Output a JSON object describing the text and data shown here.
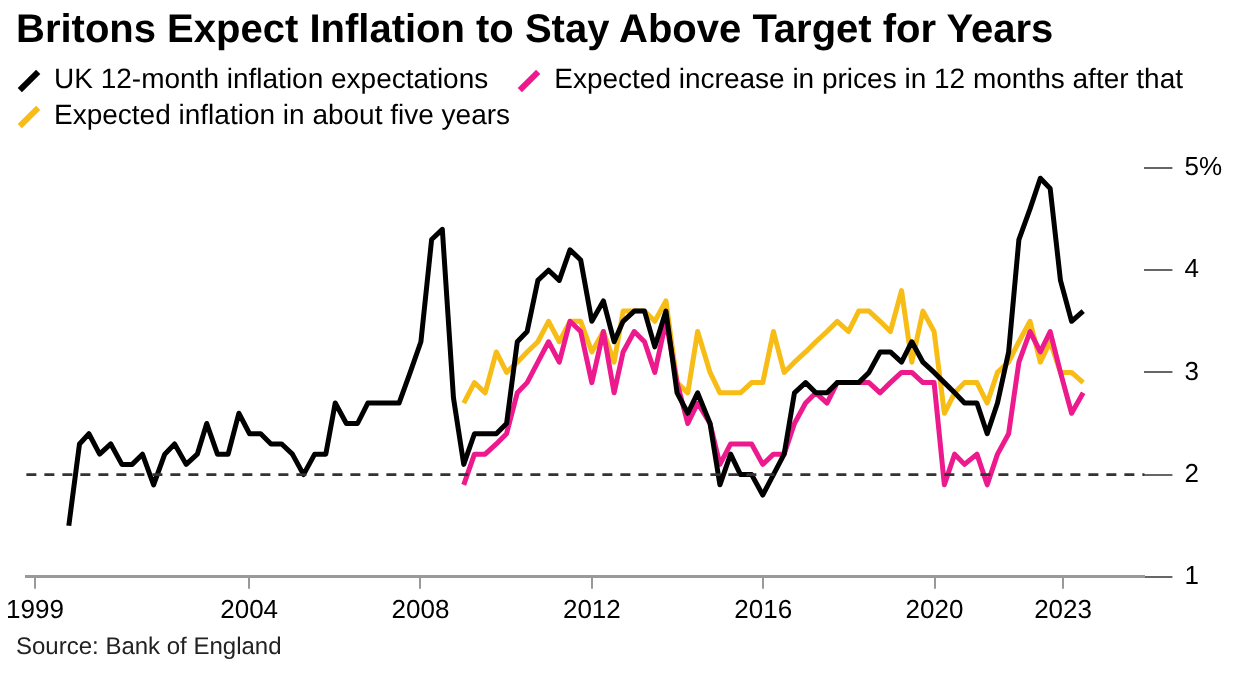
{
  "chart_data": {
    "type": "line",
    "title": "Britons Expect Inflation to Stay Above Target for Years",
    "annotations": [
      "Source: Bank of England"
    ],
    "xlim": [
      1998.8,
      2024.9
    ],
    "xticks": [
      1999,
      2004,
      2008,
      2012,
      2016,
      2020,
      2023
    ],
    "ylim": [
      1,
      5
    ],
    "yticks": [
      1,
      2,
      3,
      4,
      {
        "value": 5,
        "label": "5%"
      }
    ],
    "grid": false,
    "legend": "top",
    "marker": "none",
    "ref_lines": [
      {
        "axis": "y",
        "value": 2,
        "line_style": "dashed",
        "color": "#333333"
      }
    ],
    "series": [
      {
        "name": "UK 12-month inflation expectations",
        "color": "#000000",
        "x": [
          1999.79,
          2000.04,
          2000.26,
          2000.51,
          2000.77,
          2001.03,
          2001.27,
          2001.51,
          2001.77,
          2002.03,
          2002.26,
          2002.53,
          2002.79,
          2003.01,
          2003.26,
          2003.51,
          2003.76,
          2004.01,
          2004.27,
          2004.51,
          2004.76,
          2005.01,
          2005.27,
          2005.53,
          2005.79,
          2006.01,
          2006.27,
          2006.53,
          2006.77,
          2007.01,
          2007.26,
          2007.5,
          2007.76,
          2008.01,
          2008.26,
          2008.51,
          2008.77,
          2009.01,
          2009.26,
          2009.51,
          2009.77,
          2010.01,
          2010.26,
          2010.49,
          2010.74,
          2010.99,
          2011.24,
          2011.49,
          2011.74,
          2012.0,
          2012.27,
          2012.52,
          2012.73,
          2012.99,
          2013.23,
          2013.47,
          2013.73,
          2013.99,
          2014.24,
          2014.47,
          2014.76,
          2014.99,
          2015.24,
          2015.47,
          2015.73,
          2015.99,
          2016.24,
          2016.49,
          2016.73,
          2016.99,
          2017.23,
          2017.49,
          2017.73,
          2017.99,
          2018.23,
          2018.47,
          2018.73,
          2018.97,
          2019.23,
          2019.47,
          2019.73,
          2019.99,
          2020.23,
          2020.47,
          2020.7,
          2020.99,
          2021.23,
          2021.47,
          2021.73,
          2021.97,
          2022.23,
          2022.47,
          2022.7,
          2022.94,
          2023.2,
          2023.47
        ],
        "values": [
          1.5,
          2.3,
          2.4,
          2.2,
          2.3,
          2.1,
          2.1,
          2.2,
          1.9,
          2.2,
          2.3,
          2.1,
          2.2,
          2.5,
          2.2,
          2.2,
          2.6,
          2.4,
          2.4,
          2.3,
          2.3,
          2.2,
          2.0,
          2.2,
          2.2,
          2.7,
          2.5,
          2.5,
          2.7,
          2.7,
          2.7,
          2.7,
          3.0,
          3.3,
          4.3,
          4.4,
          2.75,
          2.1,
          2.4,
          2.4,
          2.4,
          2.5,
          3.3,
          3.4,
          3.9,
          4.0,
          3.9,
          4.2,
          4.1,
          3.5,
          3.7,
          3.3,
          3.5,
          3.6,
          3.6,
          3.25,
          3.6,
          2.8,
          2.6,
          2.8,
          2.5,
          1.9,
          2.2,
          2.0,
          2.0,
          1.8,
          2.0,
          2.2,
          2.8,
          2.9,
          2.8,
          2.8,
          2.9,
          2.9,
          2.9,
          3.0,
          3.2,
          3.2,
          3.1,
          3.3,
          3.1,
          3.0,
          2.9,
          2.8,
          2.7,
          2.7,
          2.4,
          2.7,
          3.2,
          4.3,
          4.6,
          4.9,
          4.8,
          3.9,
          3.5,
          3.6
        ]
      },
      {
        "name": "Expected increase in prices in 12 months after that",
        "color": "#ec1a8c",
        "x": [
          2009.01,
          2009.26,
          2009.51,
          2009.77,
          2010.01,
          2010.26,
          2010.49,
          2010.74,
          2010.99,
          2011.24,
          2011.49,
          2011.74,
          2012.0,
          2012.27,
          2012.52,
          2012.73,
          2012.99,
          2013.23,
          2013.47,
          2013.73,
          2013.99,
          2014.24,
          2014.47,
          2014.76,
          2014.99,
          2015.24,
          2015.47,
          2015.73,
          2015.99,
          2016.24,
          2016.49,
          2016.73,
          2016.99,
          2017.23,
          2017.49,
          2017.73,
          2017.99,
          2018.23,
          2018.47,
          2018.73,
          2018.97,
          2019.23,
          2019.47,
          2019.73,
          2019.99,
          2020.23,
          2020.47,
          2020.7,
          2020.99,
          2021.23,
          2021.47,
          2021.73,
          2021.97,
          2022.23,
          2022.47,
          2022.7,
          2022.94,
          2023.2,
          2023.47
        ],
        "values": [
          1.9,
          2.2,
          2.2,
          2.3,
          2.4,
          2.8,
          2.9,
          3.1,
          3.3,
          3.1,
          3.5,
          3.4,
          2.9,
          3.4,
          2.8,
          3.2,
          3.4,
          3.3,
          3.0,
          3.5,
          2.9,
          2.5,
          2.7,
          2.5,
          2.1,
          2.3,
          2.3,
          2.3,
          2.1,
          2.2,
          2.2,
          2.5,
          2.7,
          2.8,
          2.7,
          2.9,
          2.9,
          2.9,
          2.9,
          2.8,
          2.9,
          3.0,
          3.0,
          2.9,
          2.9,
          1.9,
          2.2,
          2.1,
          2.2,
          1.9,
          2.2,
          2.4,
          3.1,
          3.4,
          3.2,
          3.4,
          3.0,
          2.6,
          2.8
        ]
      },
      {
        "name": "Expected inflation in about five years",
        "color": "#f7bc15",
        "x": [
          2009.01,
          2009.26,
          2009.51,
          2009.77,
          2010.01,
          2010.26,
          2010.49,
          2010.74,
          2010.99,
          2011.24,
          2011.49,
          2011.74,
          2012.0,
          2012.27,
          2012.52,
          2012.73,
          2012.99,
          2013.23,
          2013.47,
          2013.73,
          2013.99,
          2014.24,
          2014.47,
          2014.76,
          2014.99,
          2015.24,
          2015.47,
          2015.73,
          2015.99,
          2016.24,
          2016.49,
          2016.73,
          2016.99,
          2017.23,
          2017.49,
          2017.73,
          2017.99,
          2018.23,
          2018.47,
          2018.73,
          2018.97,
          2019.23,
          2019.47,
          2019.73,
          2019.99,
          2020.23,
          2020.47,
          2020.7,
          2020.99,
          2021.23,
          2021.47,
          2021.73,
          2021.97,
          2022.23,
          2022.47,
          2022.7,
          2022.94,
          2023.2,
          2023.47
        ],
        "values": [
          2.7,
          2.9,
          2.8,
          3.2,
          3.0,
          3.1,
          3.2,
          3.3,
          3.5,
          3.3,
          3.5,
          3.5,
          3.2,
          3.4,
          3.1,
          3.6,
          3.6,
          3.6,
          3.5,
          3.7,
          2.9,
          2.8,
          3.4,
          3.0,
          2.8,
          2.8,
          2.8,
          2.9,
          2.9,
          3.4,
          3.0,
          3.1,
          3.2,
          3.3,
          3.4,
          3.5,
          3.4,
          3.6,
          3.6,
          3.5,
          3.4,
          3.8,
          3.1,
          3.6,
          3.4,
          2.6,
          2.8,
          2.9,
          2.9,
          2.7,
          3.0,
          3.1,
          3.3,
          3.5,
          3.1,
          3.3,
          3.0,
          3.0,
          2.9
        ]
      }
    ]
  }
}
